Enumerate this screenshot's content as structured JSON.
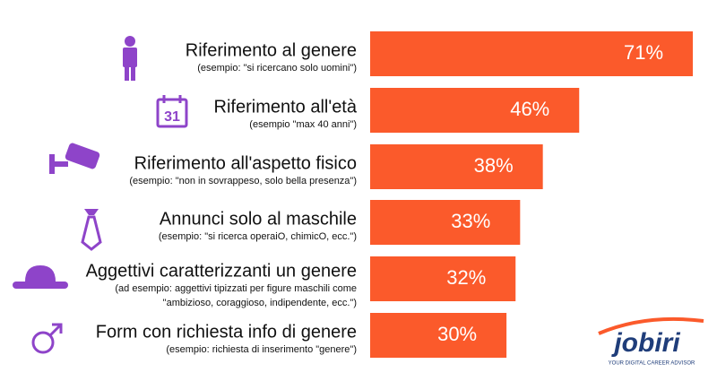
{
  "chart_data": {
    "type": "bar",
    "orientation": "horizontal",
    "color": "#fb5a2b",
    "categories": [
      "Riferimento al genere",
      "Riferimento all'età",
      "Riferimento all'aspetto fisico",
      "Annunci solo al maschile",
      "Aggettivi caratterizzanti un genere",
      "Form con richiesta info di genere"
    ],
    "descriptions": [
      [
        "(esempio: \"si ricercano solo uomini\")"
      ],
      [
        "(esempio \"max 40 anni\")"
      ],
      [
        "(esempio: \"non in sovrappeso, solo bella presenza\")"
      ],
      [
        "(esempio: \"si ricerca operaiO, chimicO, ecc.\")"
      ],
      [
        "(ad esempio: aggettivi tipizzati per figure maschili come",
        "\"ambizioso, coraggioso, indipendente, ecc.\")"
      ],
      [
        "(esempio: richiesta di inserimento \"genere\")"
      ]
    ],
    "values": [
      71,
      46,
      38,
      33,
      32,
      30
    ],
    "value_labels": [
      "71%",
      "46%",
      "38%",
      "33%",
      "32%",
      "30%"
    ]
  },
  "logo": {
    "name": "jobiri",
    "tagline": "YOUR DIGITAL CAREER ADVISOR"
  }
}
